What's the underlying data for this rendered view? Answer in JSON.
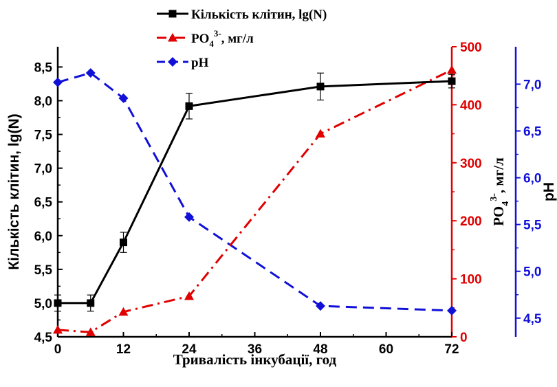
{
  "chart_data": {
    "type": "line",
    "x": [
      0,
      6,
      12,
      24,
      48,
      72
    ],
    "xlabel": "Тривалість інкубації, год",
    "xlim": [
      0,
      72
    ],
    "xticks": [
      "0",
      "12",
      "24",
      "36",
      "48",
      "60",
      "72"
    ],
    "axes": {
      "left": {
        "label": "Кількість клітин, lg(N)",
        "color": "#000000",
        "ylim": [
          4.5,
          8.8
        ],
        "ticks": [
          "4,5",
          "5,0",
          "5,5",
          "6,0",
          "6,5",
          "7,0",
          "7,5",
          "8,0",
          "8,5"
        ]
      },
      "right1": {
        "label_main": "PO",
        "label_sub": "4",
        "label_sup": "3-",
        "label_tail": ", мг/л",
        "color": "#e00000",
        "ylim": [
          0,
          500
        ],
        "ticks": [
          "0",
          "100",
          "200",
          "300",
          "400",
          "500"
        ]
      },
      "right2": {
        "label": "pH",
        "color": "#1010d8",
        "ylim": [
          4.3,
          7.4
        ],
        "ticks": [
          "4,5",
          "5,0",
          "5,5",
          "6,0",
          "6,5",
          "7,0"
        ]
      }
    },
    "series": [
      {
        "name_main": "Кількість клітин, lg(N)",
        "axis": "left",
        "color": "#000000",
        "marker": "square",
        "line": "solid",
        "values": [
          5.0,
          5.0,
          5.9,
          7.92,
          8.21,
          8.29
        ],
        "errors": [
          0.12,
          0.12,
          0.15,
          0.19,
          0.2,
          0.1
        ]
      },
      {
        "name_main": "PO",
        "name_sub": "4",
        "name_sup": "3-",
        "name_tail": ", мг/л",
        "axis": "right1",
        "color": "#e00000",
        "marker": "triangle",
        "line": "dash-dot",
        "values": [
          12,
          8,
          43,
          70,
          350,
          460
        ]
      },
      {
        "name_main": "pH",
        "axis": "right2",
        "color": "#1010d8",
        "marker": "diamond",
        "line": "dash",
        "values": [
          7.02,
          7.12,
          6.85,
          5.58,
          4.63,
          4.58
        ]
      }
    ],
    "legend_position": "top-center",
    "grid": false
  }
}
